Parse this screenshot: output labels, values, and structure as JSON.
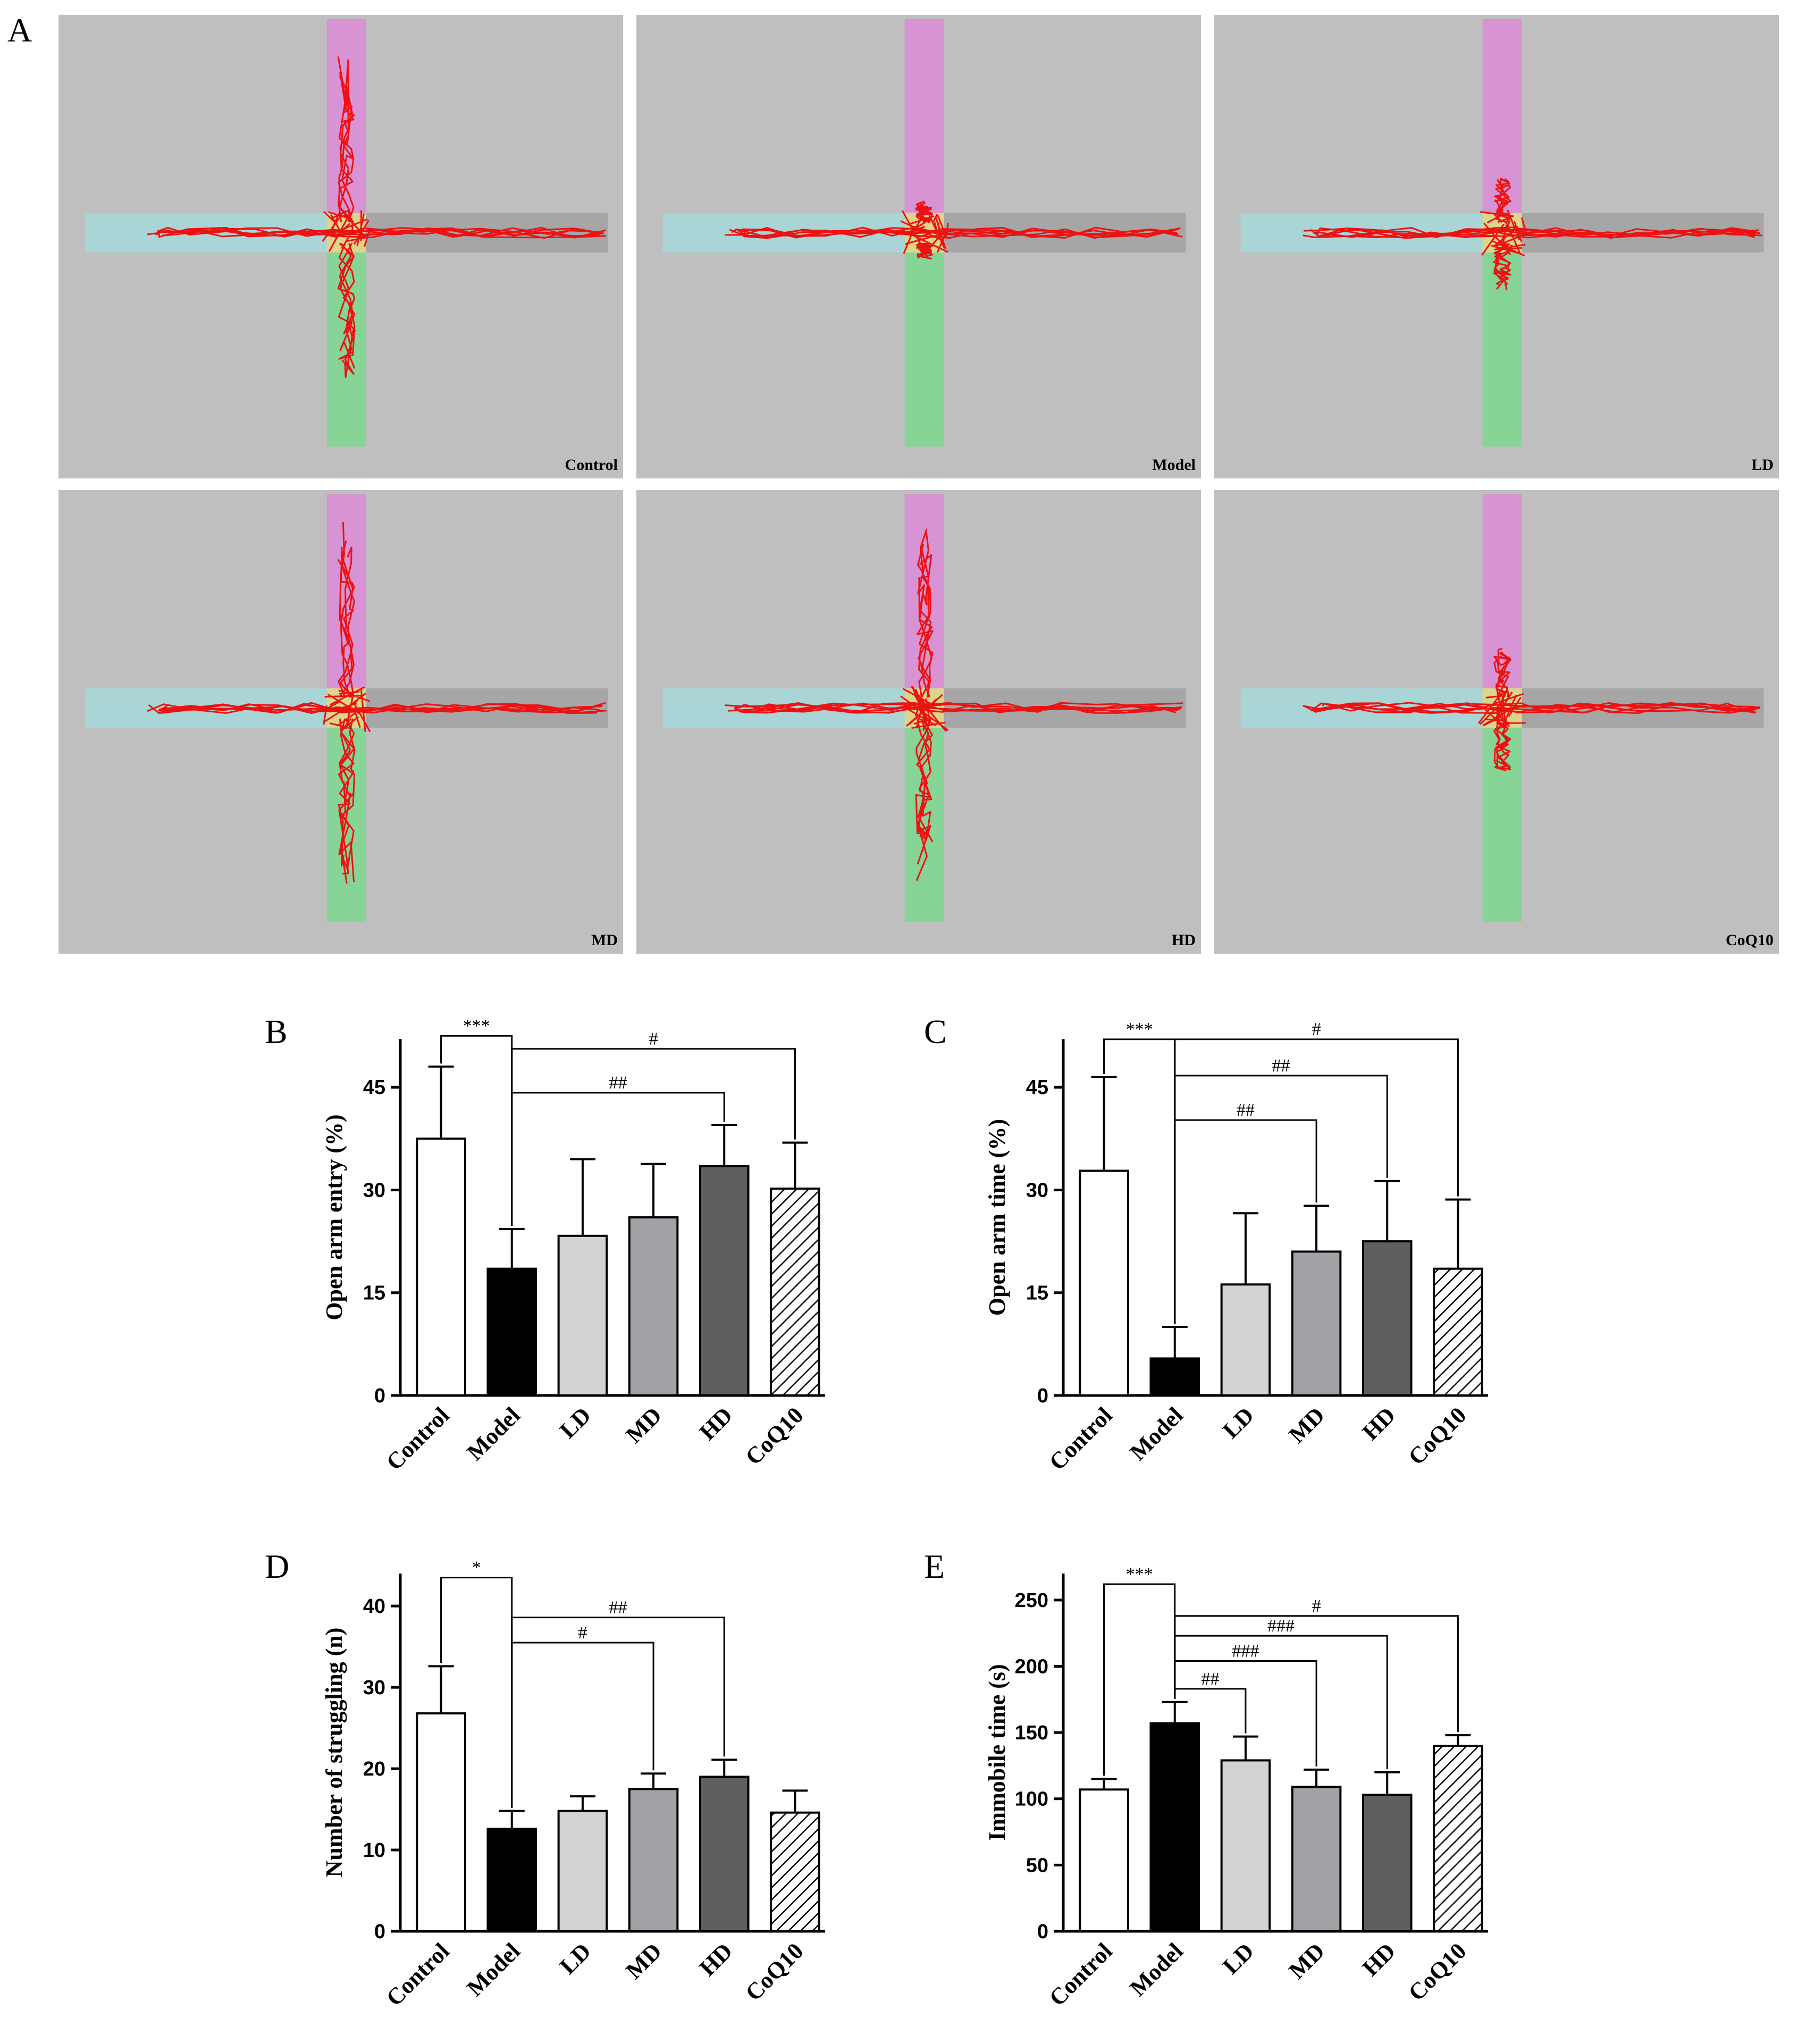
{
  "figure_letter": "A",
  "colors": {
    "maze_bg": "#bfbfbf",
    "open_arm_top": "#d893d4",
    "open_arm_bottom": "#86d496",
    "closed_arm_left": "#a9d5d7",
    "closed_arm_right": "#a6a6a6",
    "center": "#ddd68a",
    "track": "#ee1111"
  },
  "mazes": [
    {
      "label": "Control"
    },
    {
      "label": "Model"
    },
    {
      "label": "LD"
    },
    {
      "label": "MD"
    },
    {
      "label": "HD"
    },
    {
      "label": "CoQ10"
    }
  ],
  "chart_data": [
    {
      "panel": "B",
      "type": "bar",
      "ylabel": "Open arm entry (%)",
      "ylim": [
        0,
        52
      ],
      "yticks": [
        0,
        15,
        30,
        45
      ],
      "categories": [
        "Control",
        "Model",
        "LD",
        "MD",
        "HD",
        "CoQ10"
      ],
      "values": [
        37.5,
        18.5,
        23.3,
        26.0,
        33.5,
        30.2
      ],
      "errors": [
        10.5,
        5.8,
        11.2,
        7.8,
        6.0,
        6.7
      ],
      "fills": [
        "#ffffff",
        "#000000",
        "#d3d3d3",
        "#a2a2a6",
        "#5f5f5f",
        "hatch"
      ],
      "comparisons": [
        {
          "from": 0,
          "to": 1,
          "label": "***",
          "level": 52.5
        },
        {
          "from": 1,
          "to": 5,
          "label": "#",
          "level": 50.6
        },
        {
          "from": 1,
          "to": 4,
          "label": "##",
          "level": 44.2
        }
      ]
    },
    {
      "panel": "C",
      "type": "bar",
      "ylabel": "Open arm time (%)",
      "ylim": [
        0,
        52
      ],
      "yticks": [
        0,
        15,
        30,
        45
      ],
      "categories": [
        "Control",
        "Model",
        "LD",
        "MD",
        "HD",
        "CoQ10"
      ],
      "values": [
        32.8,
        5.4,
        16.2,
        21.0,
        22.5,
        18.5
      ],
      "errors": [
        13.7,
        4.6,
        10.4,
        6.7,
        8.8,
        10.1
      ],
      "fills": [
        "#ffffff",
        "#000000",
        "#d3d3d3",
        "#a2a2a6",
        "#5f5f5f",
        "hatch"
      ],
      "comparisons": [
        {
          "from": 0,
          "to": 1,
          "label": "***",
          "level": 52.0
        },
        {
          "from": 1,
          "to": 5,
          "label": "#",
          "level": 52.0
        },
        {
          "from": 1,
          "to": 4,
          "label": "##",
          "level": 46.7
        },
        {
          "from": 1,
          "to": 3,
          "label": "##",
          "level": 40.2
        }
      ]
    },
    {
      "panel": "D",
      "type": "bar",
      "ylabel": "Number of struggling (n)",
      "ylim": [
        0,
        44
      ],
      "yticks": [
        0,
        10,
        20,
        30,
        40
      ],
      "categories": [
        "Control",
        "Model",
        "LD",
        "MD",
        "HD",
        "CoQ10"
      ],
      "values": [
        26.8,
        12.6,
        14.8,
        17.5,
        19.0,
        14.6
      ],
      "errors": [
        5.8,
        2.2,
        1.8,
        1.9,
        2.1,
        2.7
      ],
      "fills": [
        "#ffffff",
        "#000000",
        "#d3d3d3",
        "#a2a2a6",
        "#5f5f5f",
        "hatch"
      ],
      "comparisons": [
        {
          "from": 0,
          "to": 1,
          "label": "*",
          "level": 43.5
        },
        {
          "from": 1,
          "to": 4,
          "label": "##",
          "level": 38.6
        },
        {
          "from": 1,
          "to": 3,
          "label": "#",
          "level": 35.5
        }
      ]
    },
    {
      "panel": "E",
      "type": "bar",
      "ylabel": "Immobile time (s)",
      "ylim": [
        0,
        270
      ],
      "yticks": [
        0,
        50,
        100,
        150,
        200,
        250
      ],
      "categories": [
        "Control",
        "Model",
        "LD",
        "MD",
        "HD",
        "CoQ10"
      ],
      "values": [
        107,
        157,
        129,
        109,
        103,
        140
      ],
      "errors": [
        8,
        16,
        18,
        13,
        17,
        8
      ],
      "fills": [
        "#ffffff",
        "#000000",
        "#d3d3d3",
        "#a2a2a6",
        "#5f5f5f",
        "hatch"
      ],
      "comparisons": [
        {
          "from": 0,
          "to": 1,
          "label": "***",
          "level": 262
        },
        {
          "from": 1,
          "to": 5,
          "label": "#",
          "level": 238
        },
        {
          "from": 1,
          "to": 4,
          "label": "###",
          "level": 223
        },
        {
          "from": 1,
          "to": 3,
          "label": "###",
          "level": 204
        },
        {
          "from": 1,
          "to": 2,
          "label": "##",
          "level": 183
        }
      ]
    }
  ]
}
